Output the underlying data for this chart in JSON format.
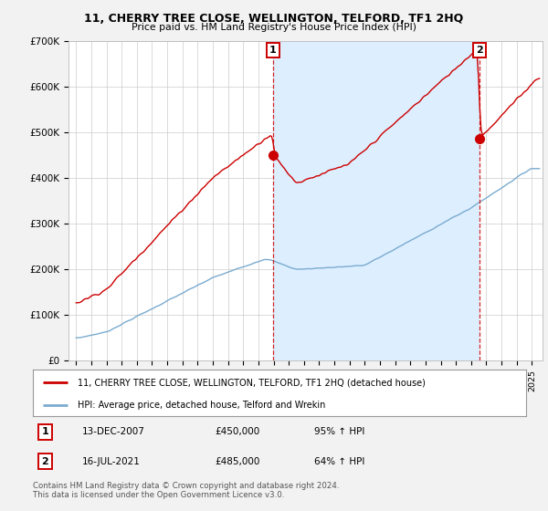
{
  "title": "11, CHERRY TREE CLOSE, WELLINGTON, TELFORD, TF1 2HQ",
  "subtitle": "Price paid vs. HM Land Registry's House Price Index (HPI)",
  "ylim": [
    0,
    700000
  ],
  "yticks": [
    0,
    100000,
    200000,
    300000,
    400000,
    500000,
    600000,
    700000
  ],
  "ytick_labels": [
    "£0",
    "£100K",
    "£200K",
    "£300K",
    "£400K",
    "£500K",
    "£600K",
    "£700K"
  ],
  "red_color": "#cc0000",
  "blue_color": "#7aabcf",
  "shade_color": "#ddeeff",
  "dashed_color": "#cc0000",
  "legend_label_red": "11, CHERRY TREE CLOSE, WELLINGTON, TELFORD, TF1 2HQ (detached house)",
  "legend_label_blue": "HPI: Average price, detached house, Telford and Wrekin",
  "sale1_date": "13-DEC-2007",
  "sale1_price": 450000,
  "sale1_hpi": "95% ↑ HPI",
  "sale1_x": 2007.96,
  "sale2_date": "16-JUL-2021",
  "sale2_price": 485000,
  "sale2_hpi": "64% ↑ HPI",
  "sale2_x": 2021.54,
  "footer": "Contains HM Land Registry data © Crown copyright and database right 2024.\nThis data is licensed under the Open Government Licence v3.0.",
  "bg_color": "#f2f2f2",
  "plot_bg_color": "#ffffff"
}
